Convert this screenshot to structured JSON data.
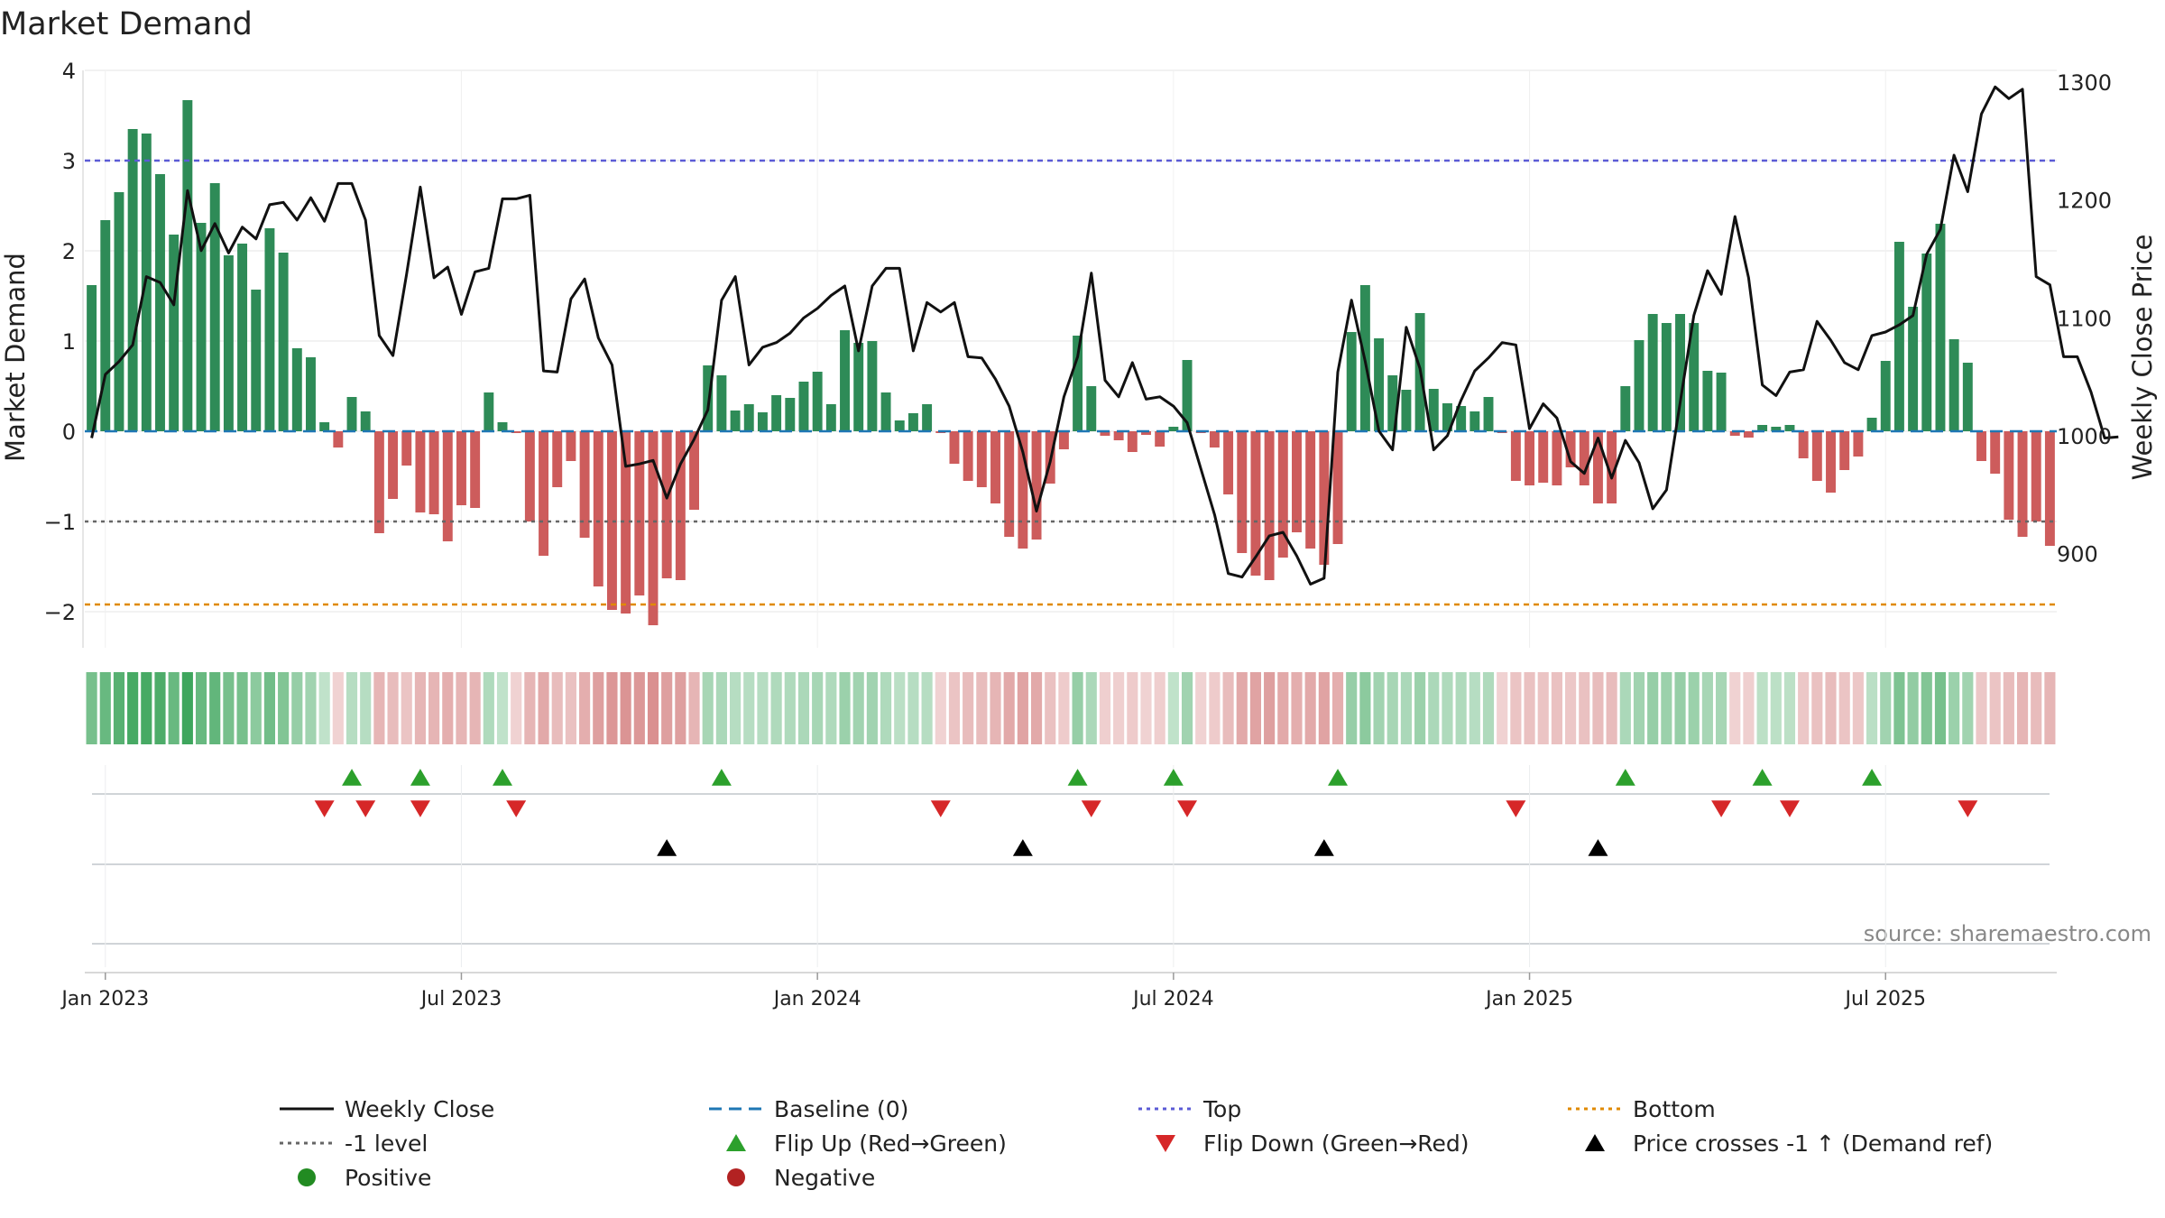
{
  "chart_data": {
    "type": "bar",
    "title": "Market Demand",
    "ylabel": "Market Demand",
    "y2label": "Weekly Close Price",
    "ylim": [
      -2.4,
      4.0
    ],
    "y2lim": [
      820,
      1310
    ],
    "yticks": [
      4,
      3,
      2,
      1,
      0,
      -1,
      -2
    ],
    "ytick_labels": [
      "4",
      "3",
      "2",
      "1",
      "0",
      "−1",
      "−2"
    ],
    "y2ticks": [
      1300,
      1200,
      1100,
      1000,
      900
    ],
    "y2tick_labels": [
      "1300",
      "1200",
      "1100",
      "1000",
      "900"
    ],
    "x_start_week": 0,
    "x_ticks": [
      {
        "label": "Jan 2023",
        "week": 1
      },
      {
        "label": "Jul 2023",
        "week": 27
      },
      {
        "label": "Jan 2024",
        "week": 53
      },
      {
        "label": "Jul 2024",
        "week": 79
      },
      {
        "label": "Jan 2025",
        "week": 105
      },
      {
        "label": "Jul 2025",
        "week": 131
      }
    ],
    "reference_lines": [
      {
        "name": "Top",
        "value": 3.0,
        "color": "#5b5bd6",
        "style": "dashed"
      },
      {
        "name": "-1 level",
        "value": -1.0,
        "color": "#666666",
        "style": "dotted"
      },
      {
        "name": "Bottom",
        "value": -1.92,
        "color": "#e08a00",
        "style": "dashed"
      },
      {
        "name": "Baseline (0)",
        "value": 0.0,
        "color": "#1f77b4",
        "style": "dashed"
      }
    ],
    "demand": [
      1.62,
      2.34,
      2.65,
      3.35,
      3.3,
      2.85,
      2.18,
      3.67,
      2.31,
      2.75,
      1.95,
      2.08,
      1.57,
      2.25,
      1.98,
      0.92,
      0.82,
      0.1,
      -0.18,
      0.38,
      0.22,
      -1.13,
      -0.75,
      -0.38,
      -0.9,
      -0.92,
      -1.22,
      -0.82,
      -0.85,
      0.43,
      0.1,
      -0.02,
      -1.0,
      -1.38,
      -0.62,
      -0.33,
      -1.18,
      -1.72,
      -1.98,
      -2.02,
      -1.82,
      -2.15,
      -1.63,
      -1.65,
      -0.87,
      0.73,
      0.62,
      0.23,
      0.3,
      0.21,
      0.4,
      0.37,
      0.55,
      0.66,
      0.3,
      1.12,
      0.98,
      1.0,
      0.43,
      0.12,
      0.2,
      0.3,
      -0.02,
      -0.36,
      -0.55,
      -0.62,
      -0.8,
      -1.17,
      -1.3,
      -1.2,
      -0.58,
      -0.2,
      1.06,
      0.5,
      -0.05,
      -0.1,
      -0.23,
      -0.04,
      -0.17,
      0.05,
      0.79,
      -0.02,
      -0.18,
      -0.7,
      -1.35,
      -1.6,
      -1.65,
      -1.4,
      -1.12,
      -1.3,
      -1.48,
      -1.25,
      1.1,
      1.62,
      1.03,
      0.62,
      0.46,
      1.31,
      0.47,
      0.31,
      0.28,
      0.22,
      0.38,
      -0.02,
      -0.55,
      -0.6,
      -0.57,
      -0.6,
      -0.4,
      -0.6,
      -0.8,
      -0.8,
      0.5,
      1.01,
      1.3,
      1.2,
      1.3,
      1.2,
      0.67,
      0.65,
      -0.05,
      -0.07,
      0.07,
      0.05,
      0.07,
      -0.3,
      -0.55,
      -0.68,
      -0.43,
      -0.28,
      0.15,
      0.78,
      2.1,
      1.38,
      1.97,
      2.3,
      1.02,
      0.76,
      -0.33,
      -0.47,
      -0.98,
      -1.17,
      -1.0,
      -1.27
    ],
    "weekly_close": [
      998,
      1052,
      1063,
      1077,
      1135,
      1130,
      1111,
      1208,
      1157,
      1180,
      1155,
      1177,
      1167,
      1196,
      1198,
      1183,
      1202,
      1182,
      1214,
      1214,
      1183,
      1085,
      1068,
      1137,
      1211,
      1134,
      1143,
      1103,
      1139,
      1142,
      1201,
      1201,
      1204,
      1055,
      1054,
      1116,
      1133,
      1083,
      1060,
      974,
      976,
      979,
      947,
      976,
      997,
      1022,
      1115,
      1135,
      1060,
      1075,
      1079,
      1087,
      1100,
      1108,
      1119,
      1127,
      1072,
      1127,
      1142,
      1142,
      1072,
      1113,
      1105,
      1113,
      1067,
      1066,
      1048,
      1025,
      986,
      936,
      978,
      1033,
      1067,
      1138,
      1047,
      1033,
      1062,
      1031,
      1033,
      1025,
      1011,
      972,
      933,
      883,
      880,
      897,
      915,
      918,
      898,
      874,
      879,
      1054,
      1115,
      1063,
      1004,
      988,
      1092,
      1057,
      988,
      1000,
      1030,
      1055,
      1066,
      1079,
      1077,
      1006,
      1027,
      1015,
      978,
      968,
      998,
      964,
      996,
      977,
      938,
      954,
      1028,
      1102,
      1140,
      1120,
      1186,
      1134,
      1043,
      1034,
      1054,
      1056,
      1097,
      1081,
      1062,
      1056,
      1085,
      1088,
      1094,
      1102,
      1154,
      1175,
      1238,
      1207,
      1273,
      1296,
      1286,
      1294,
      1135,
      1128,
      1067,
      1067,
      1037,
      998,
      999
    ],
    "heat_intensity": [
      0.65,
      0.72,
      0.8,
      0.88,
      0.88,
      0.85,
      0.72,
      0.92,
      0.72,
      0.75,
      0.65,
      0.65,
      0.55,
      0.68,
      0.6,
      0.5,
      0.45,
      0.3,
      0.3,
      0.35,
      0.35,
      0.5,
      0.45,
      0.4,
      0.5,
      0.5,
      0.55,
      0.5,
      0.5,
      0.38,
      0.3,
      0.3,
      0.5,
      0.58,
      0.45,
      0.42,
      0.55,
      0.65,
      0.7,
      0.72,
      0.7,
      0.75,
      0.65,
      0.65,
      0.5,
      0.42,
      0.4,
      0.35,
      0.35,
      0.35,
      0.38,
      0.38,
      0.4,
      0.42,
      0.38,
      0.48,
      0.45,
      0.45,
      0.38,
      0.33,
      0.35,
      0.35,
      0.3,
      0.4,
      0.45,
      0.45,
      0.5,
      0.58,
      0.62,
      0.58,
      0.42,
      0.35,
      0.5,
      0.4,
      0.32,
      0.32,
      0.35,
      0.3,
      0.33,
      0.3,
      0.45,
      0.3,
      0.35,
      0.45,
      0.58,
      0.62,
      0.65,
      0.58,
      0.55,
      0.58,
      0.62,
      0.55,
      0.5,
      0.55,
      0.45,
      0.42,
      0.4,
      0.48,
      0.4,
      0.38,
      0.38,
      0.35,
      0.38,
      0.3,
      0.4,
      0.42,
      0.4,
      0.42,
      0.38,
      0.42,
      0.45,
      0.45,
      0.4,
      0.45,
      0.5,
      0.48,
      0.5,
      0.48,
      0.42,
      0.42,
      0.3,
      0.32,
      0.32,
      0.32,
      0.32,
      0.38,
      0.42,
      0.45,
      0.4,
      0.38,
      0.33,
      0.45,
      0.62,
      0.52,
      0.6,
      0.65,
      0.48,
      0.45,
      0.38,
      0.4,
      0.45,
      0.5,
      0.45,
      0.5
    ],
    "flip_up_weeks": [
      19,
      24,
      30,
      46,
      72,
      79,
      91,
      112,
      122,
      130
    ],
    "flip_down_weeks": [
      17,
      20,
      24,
      31,
      62,
      73,
      80,
      104,
      119,
      124,
      137
    ],
    "price_cross_weeks": [
      42,
      68,
      90,
      110
    ],
    "source": "source: sharemaestro.com",
    "legend": [
      {
        "label": "Weekly Close",
        "symbol": "line",
        "color": "#111111"
      },
      {
        "label": "Baseline (0)",
        "symbol": "dash",
        "color": "#1f77b4"
      },
      {
        "label": "Top",
        "symbol": "dotted",
        "color": "#5b5bd6"
      },
      {
        "label": "Bottom",
        "symbol": "dotted",
        "color": "#e08a00"
      },
      {
        "label": "-1 level",
        "symbol": "dotted",
        "color": "#666666"
      },
      {
        "label": "Flip Up (Red→Green)",
        "symbol": "tri-up",
        "color": "#2ca02c"
      },
      {
        "label": "Flip Down (Green→Red)",
        "symbol": "tri-down",
        "color": "#d62728"
      },
      {
        "label": "Price crosses -1 ↑ (Demand ref)",
        "symbol": "tri-up",
        "color": "#000000"
      },
      {
        "label": "Positive",
        "symbol": "dot",
        "color": "#228b22"
      },
      {
        "label": "Negative",
        "symbol": "dot",
        "color": "#b22222"
      }
    ],
    "colors": {
      "positive_bar": "#2e8b57",
      "negative_bar": "#cd5c5c",
      "heat_positive": "#2e9e4f",
      "heat_negative": "#cd6b6b",
      "grid": "#e6e6e6"
    }
  }
}
